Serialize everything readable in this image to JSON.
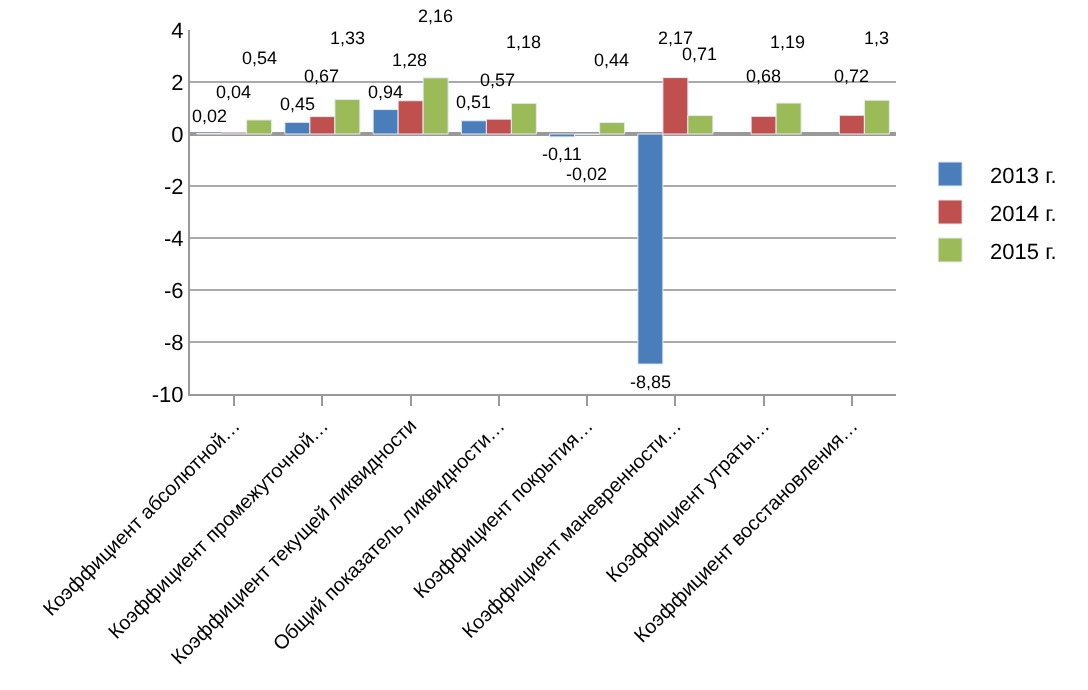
{
  "chart_data": {
    "type": "bar",
    "categories": [
      "Коэффициент абсолютной…",
      "Коэффициент промежуточной…",
      "Коэффициент текущей ликвидности",
      "Общий показатель ликвидности…",
      "Коэффициент покрытия…",
      "Коэффициент маневренности…",
      "Коэффициент утраты…",
      "Коэффициент восстановления…"
    ],
    "series": [
      {
        "name": "2013 г.",
        "color": "#4a7ebb",
        "values": [
          0.02,
          0.45,
          0.94,
          0.51,
          -0.11,
          -8.85,
          null,
          null
        ],
        "value_labels": [
          "0,02",
          "0,45",
          "0,94",
          "0,51",
          "-0,11",
          "-8,85",
          null,
          null
        ]
      },
      {
        "name": "2014 г.",
        "color": "#c0504d",
        "values": [
          0.04,
          0.67,
          1.28,
          0.57,
          -0.02,
          2.17,
          0.68,
          0.72
        ],
        "value_labels": [
          "0,04",
          "0,67",
          "1,28",
          "0,57",
          "-0,02",
          "2,17",
          "0,68",
          "0,72"
        ]
      },
      {
        "name": "2015 г.",
        "color": "#9bbb59",
        "values": [
          0.54,
          1.33,
          2.16,
          1.18,
          0.44,
          0.71,
          1.19,
          1.3
        ],
        "value_labels": [
          "0,54",
          "1,33",
          "2,16",
          "1,18",
          "0,44",
          "0,71",
          "1,19",
          "1,3"
        ]
      }
    ],
    "ylim": [
      -10,
      4
    ],
    "yticks": [
      -10,
      -8,
      -6,
      -4,
      -2,
      0,
      2,
      4
    ],
    "grid": "y",
    "legend": "right"
  }
}
